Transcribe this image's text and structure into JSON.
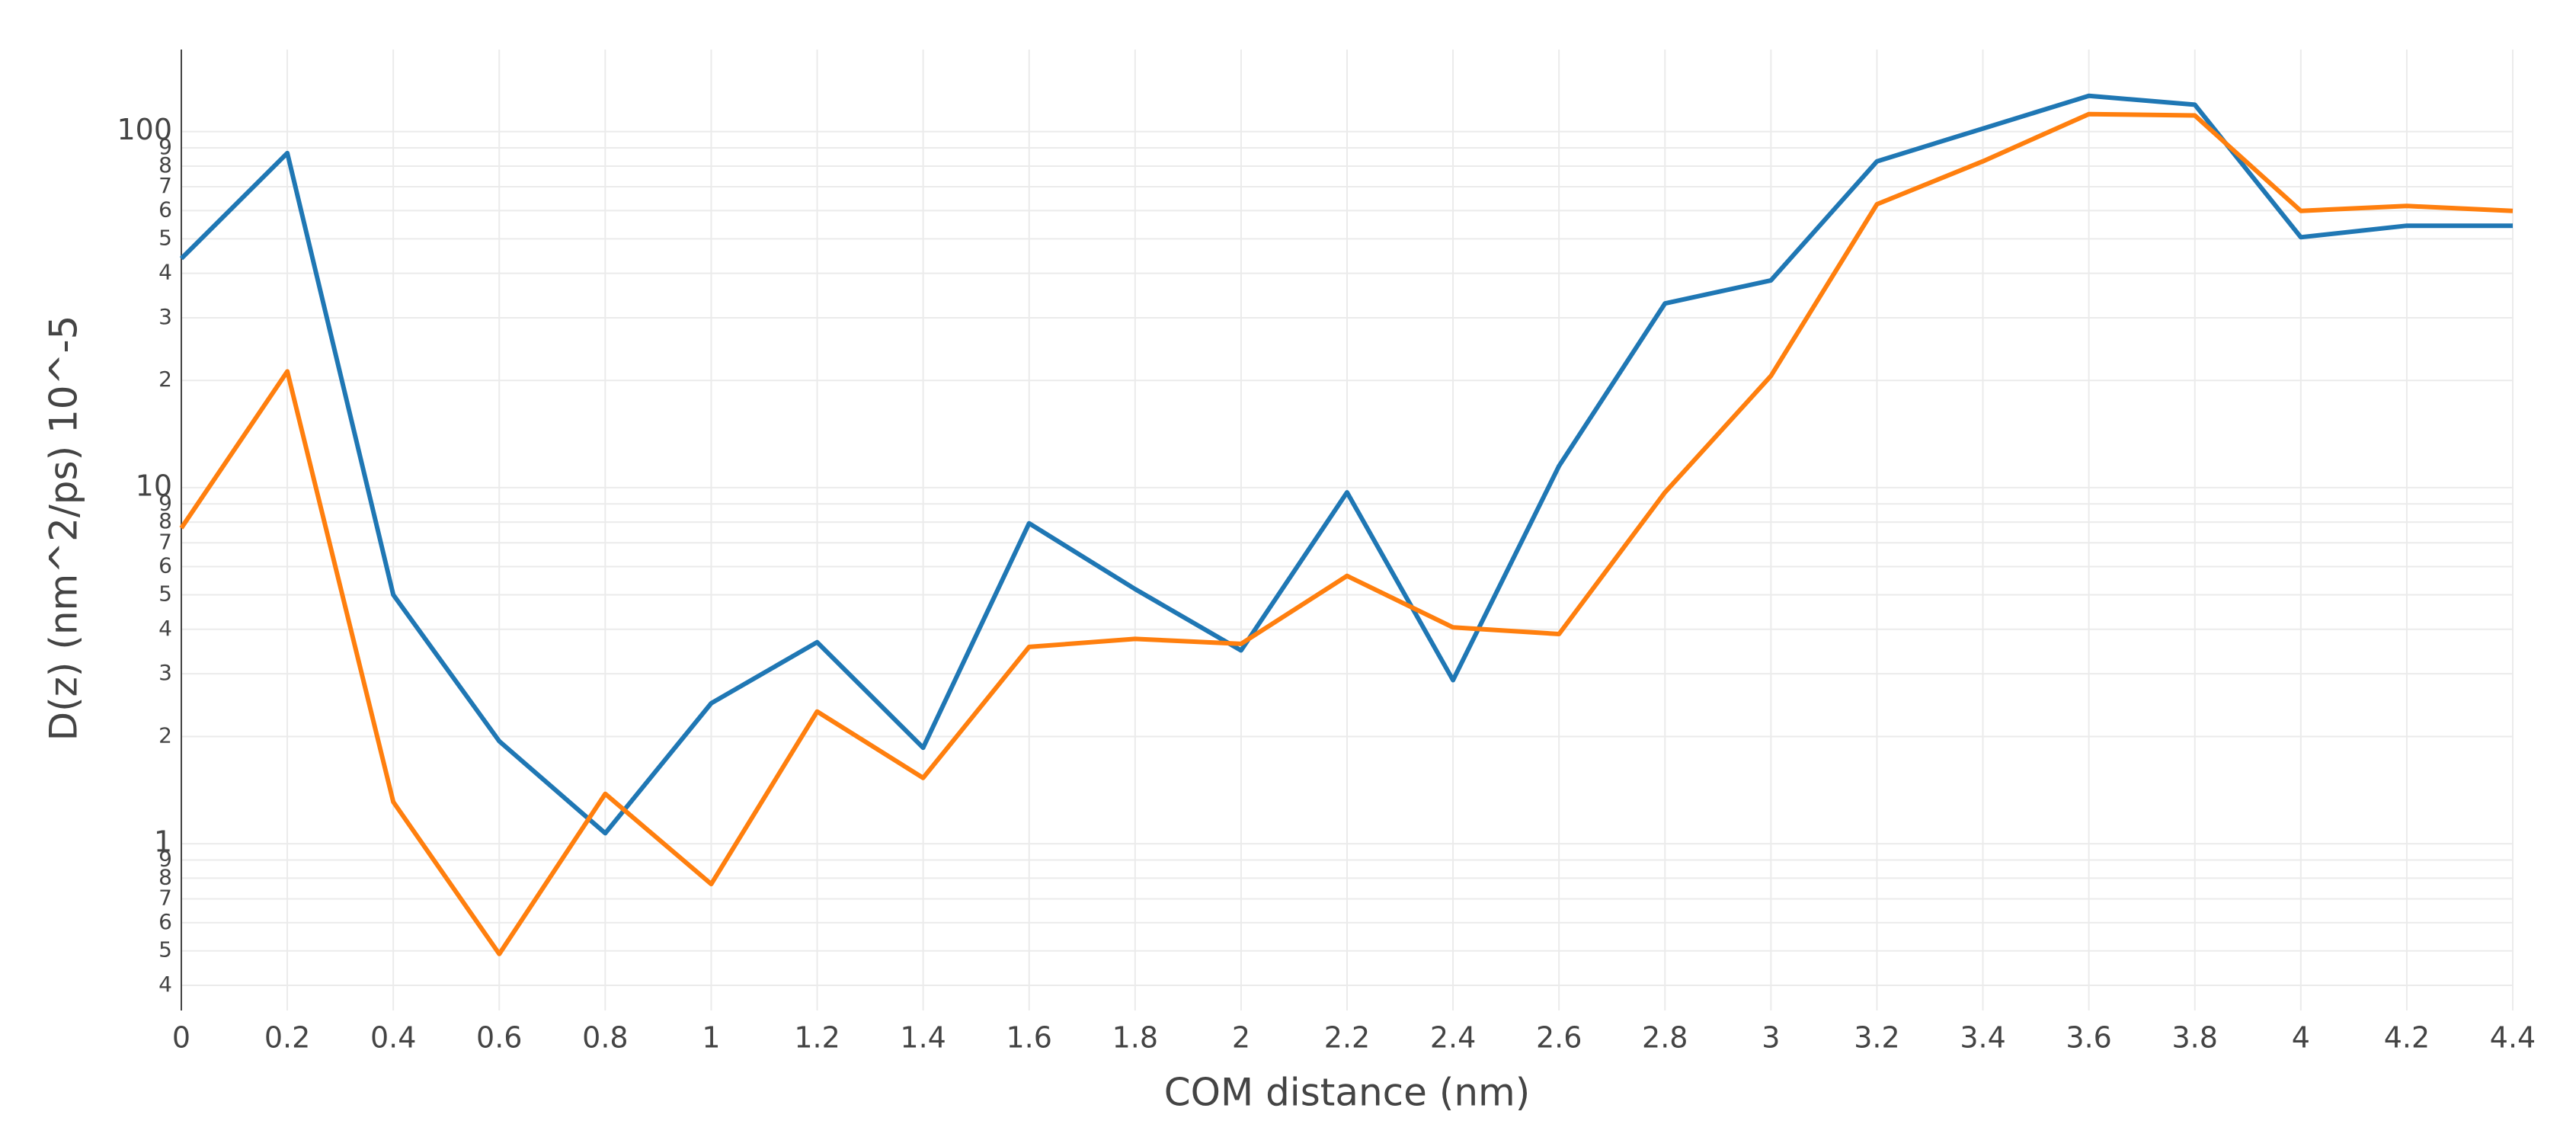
{
  "chart_data": {
    "type": "line",
    "x_label": "COM distance (nm)",
    "y_label": "D(z) (nm^2/ps) 10^-5",
    "log_y": true,
    "grid": true,
    "x": [
      0,
      0.2,
      0.4,
      0.6,
      0.8,
      1,
      1.2,
      1.4,
      1.6,
      1.8,
      2,
      2.2,
      2.4,
      2.6,
      2.8,
      3,
      3.2,
      3.4,
      3.6,
      3.8,
      4,
      4.2,
      4.4
    ],
    "series": [
      {
        "color": "#1f77b4",
        "values": [
          44,
          87,
          5.0,
          1.94,
          1.07,
          2.48,
          3.68,
          1.86,
          7.94,
          5.19,
          3.49,
          9.7,
          2.88,
          11.5,
          32.9,
          38.2,
          82.5,
          102,
          126,
          119,
          50.5,
          54.4,
          54.4
        ]
      },
      {
        "color": "#ff7f0e",
        "values": [
          7.7,
          21.2,
          1.31,
          0.49,
          1.38,
          0.77,
          2.35,
          1.53,
          3.57,
          3.76,
          3.64,
          5.65,
          4.05,
          3.88,
          9.7,
          20.6,
          62.5,
          82.5,
          112,
          111,
          59.9,
          61.8,
          59.9
        ]
      }
    ],
    "xlim": [
      0,
      4.4
    ],
    "xticks": [
      0,
      0.2,
      0.4,
      0.6,
      0.8,
      1,
      1.2,
      1.4,
      1.6,
      1.8,
      2,
      2.2,
      2.4,
      2.6,
      2.8,
      3,
      3.2,
      3.4,
      3.6,
      3.8,
      4,
      4.2,
      4.4
    ],
    "ylim": [
      0.34,
      170
    ],
    "yticks": [
      {
        "value": 0.4,
        "label": "4"
      },
      {
        "value": 0.5,
        "label": "5"
      },
      {
        "value": 0.6,
        "label": "6"
      },
      {
        "value": 0.7,
        "label": "7"
      },
      {
        "value": 0.8,
        "label": "8"
      },
      {
        "value": 0.9,
        "label": "9"
      },
      1,
      2,
      3,
      4,
      5,
      6,
      7,
      8,
      9,
      10,
      {
        "value": 20,
        "label": "2"
      },
      {
        "value": 30,
        "label": "3"
      },
      {
        "value": 40,
        "label": "4"
      },
      {
        "value": 50,
        "label": "5"
      },
      {
        "value": 60,
        "label": "6"
      },
      {
        "value": 70,
        "label": "7"
      },
      {
        "value": 80,
        "label": "8"
      },
      {
        "value": 90,
        "label": "9"
      },
      100
    ]
  }
}
